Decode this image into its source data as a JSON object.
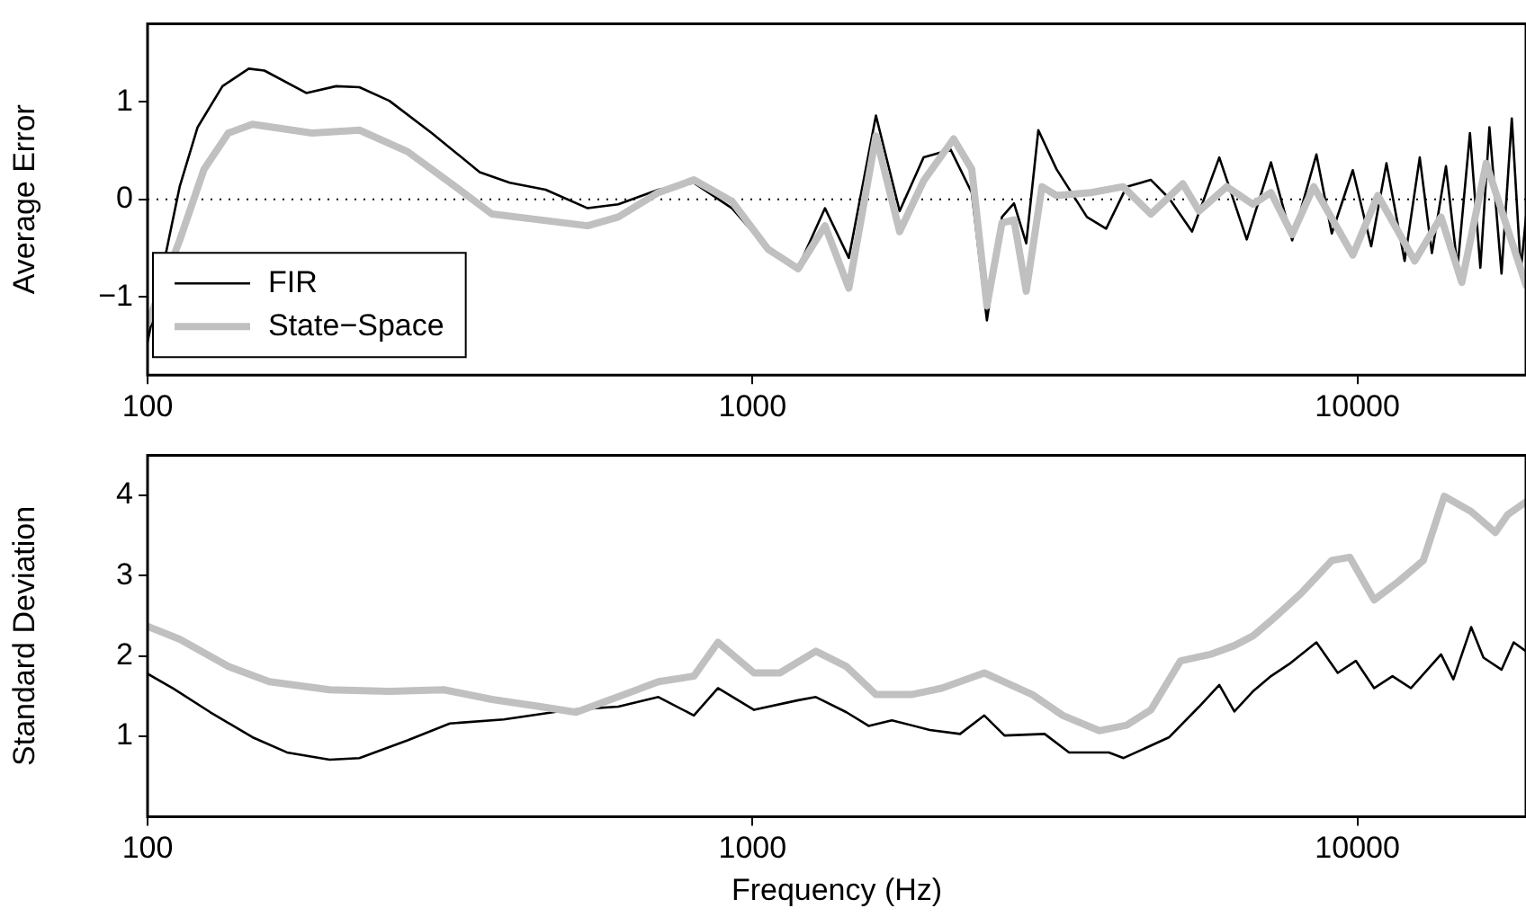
{
  "chart_data": [
    {
      "type": "line",
      "ylabel": "Average Error",
      "log": "x",
      "xlim": [
        100,
        19000
      ],
      "xticks": [
        100,
        1000,
        10000
      ],
      "ylim": [
        -1.8,
        1.8
      ],
      "yticks": [
        -1,
        0,
        1
      ],
      "legend": "bottom left",
      "ref_lines": [
        {
          "axis": "y",
          "value": 0,
          "color": "#000000",
          "line_style": "dotted"
        }
      ],
      "series": [
        {
          "name": "FIR",
          "color": "#000000",
          "x": [
            100,
            113,
            121,
            133,
            147,
            156,
            183,
            205,
            224,
            251,
            295,
            354,
            397,
            455,
            534,
            600,
            699,
            800,
            925,
            1061,
            1190,
            1318,
            1443,
            1600,
            1751,
            1918,
            2126,
            2304,
            2441,
            2585,
            2706,
            2835,
            2969,
            3181,
            3572,
            3843,
            4155,
            4557,
            4887,
            5329,
            5912,
            6563,
            7197,
            7802,
            8556,
            9071,
            9827,
            10540,
            11170,
            11970,
            12680,
            13280,
            14010,
            14640,
            15350,
            15970,
            16530,
            17310,
            18000,
            18630,
            19000
          ],
          "values": [
            -1.46,
            0.13,
            0.74,
            1.16,
            1.34,
            1.32,
            1.09,
            1.16,
            1.15,
            1.01,
            0.68,
            0.28,
            0.17,
            0.1,
            -0.09,
            -0.05,
            0.1,
            0.17,
            -0.09,
            -0.51,
            -0.7,
            -0.09,
            -0.6,
            0.86,
            -0.12,
            0.43,
            0.51,
            0.07,
            -1.24,
            -0.18,
            -0.04,
            -0.45,
            0.71,
            0.31,
            -0.18,
            -0.3,
            0.13,
            0.2,
            0.01,
            -0.33,
            0.43,
            -0.41,
            0.38,
            -0.42,
            0.46,
            -0.35,
            0.3,
            -0.48,
            0.37,
            -0.63,
            0.43,
            -0.55,
            0.34,
            -0.7,
            0.68,
            -0.7,
            0.74,
            -0.76,
            0.83,
            -0.73,
            -0.18
          ]
        },
        {
          "name": "State−Space",
          "color": "#c0c0c0",
          "x": [
            100,
            113,
            124,
            136,
            149,
            187,
            224,
            269,
            323,
            371,
            446,
            534,
            600,
            699,
            800,
            925,
            1061,
            1190,
            1318,
            1443,
            1600,
            1751,
            1918,
            2150,
            2304,
            2441,
            2585,
            2706,
            2835,
            3010,
            3181,
            3627,
            4100,
            4557,
            5146,
            5475,
            6080,
            6719,
            7197,
            7802,
            8470,
            9827,
            10810,
            12440,
            13750,
            14880,
            16330,
            19000
          ],
          "values": [
            -1.27,
            -0.42,
            0.31,
            0.68,
            0.77,
            0.68,
            0.71,
            0.49,
            0.13,
            -0.15,
            -0.21,
            -0.27,
            -0.18,
            0.07,
            0.2,
            -0.02,
            -0.51,
            -0.71,
            -0.27,
            -0.91,
            0.65,
            -0.33,
            0.19,
            0.62,
            0.31,
            -1.09,
            -0.24,
            -0.21,
            -0.94,
            0.13,
            0.04,
            0.07,
            0.13,
            -0.15,
            0.16,
            -0.12,
            0.13,
            -0.05,
            0.07,
            -0.36,
            0.13,
            -0.57,
            0.04,
            -0.63,
            -0.18,
            -0.85,
            0.37,
            -0.88
          ]
        }
      ]
    },
    {
      "type": "line",
      "xlabel": "Frequency (Hz)",
      "ylabel": "Standard Deviation",
      "log": "x",
      "xlim": [
        100,
        19000
      ],
      "xticks": [
        100,
        1000,
        10000
      ],
      "ylim": [
        0,
        4.5
      ],
      "yticks": [
        1,
        2,
        3,
        4
      ],
      "series": [
        {
          "color": "#000000",
          "x": [
            100,
            110,
            127,
            149,
            170,
            200,
            224,
            269,
            316,
            388,
            499,
            600,
            699,
            800,
            877,
            1006,
            1190,
            1273,
            1430,
            1556,
            1700,
            1964,
            2204,
            2417,
            2610,
            3041,
            3337,
            3883,
            4107,
            4887,
            5475,
            5912,
            6261,
            6719,
            7197,
            7712,
            8556,
            9280,
            9941,
            10660,
            11430,
            12260,
            13750,
            14410,
            15420,
            16160,
            17310,
            18130,
            19000
          ],
          "values": [
            1.78,
            1.6,
            1.3,
            0.99,
            0.8,
            0.71,
            0.73,
            0.95,
            1.16,
            1.21,
            1.33,
            1.37,
            1.49,
            1.26,
            1.6,
            1.33,
            1.45,
            1.49,
            1.3,
            1.13,
            1.2,
            1.08,
            1.03,
            1.26,
            1.01,
            1.03,
            0.8,
            0.8,
            0.73,
            0.99,
            1.37,
            1.64,
            1.31,
            1.56,
            1.75,
            1.9,
            2.17,
            1.79,
            1.94,
            1.6,
            1.75,
            1.6,
            2.02,
            1.71,
            2.36,
            1.98,
            1.83,
            2.17,
            2.06
          ]
        },
        {
          "color": "#c0c0c0",
          "x": [
            100,
            113,
            136,
            159,
            200,
            251,
            309,
            371,
            446,
            511,
            614,
            699,
            800,
            877,
            1006,
            1110,
            1273,
            1430,
            1600,
            1833,
            2055,
            2417,
            2902,
            3260,
            3744,
            4155,
            4557,
            5100,
            5711,
            6261,
            6719,
            7197,
            8071,
            9071,
            9714,
            10660,
            11700,
            12850,
            13920,
            15420,
            16910,
            17720,
            19000
          ],
          "values": [
            2.37,
            2.21,
            1.87,
            1.68,
            1.58,
            1.56,
            1.58,
            1.46,
            1.37,
            1.3,
            1.52,
            1.68,
            1.75,
            2.17,
            1.79,
            1.79,
            2.06,
            1.87,
            1.52,
            1.52,
            1.6,
            1.79,
            1.52,
            1.26,
            1.07,
            1.14,
            1.33,
            1.94,
            2.02,
            2.13,
            2.25,
            2.44,
            2.78,
            3.19,
            3.23,
            2.7,
            2.93,
            3.19,
            3.99,
            3.8,
            3.54,
            3.76,
            3.92
          ]
        }
      ]
    }
  ]
}
